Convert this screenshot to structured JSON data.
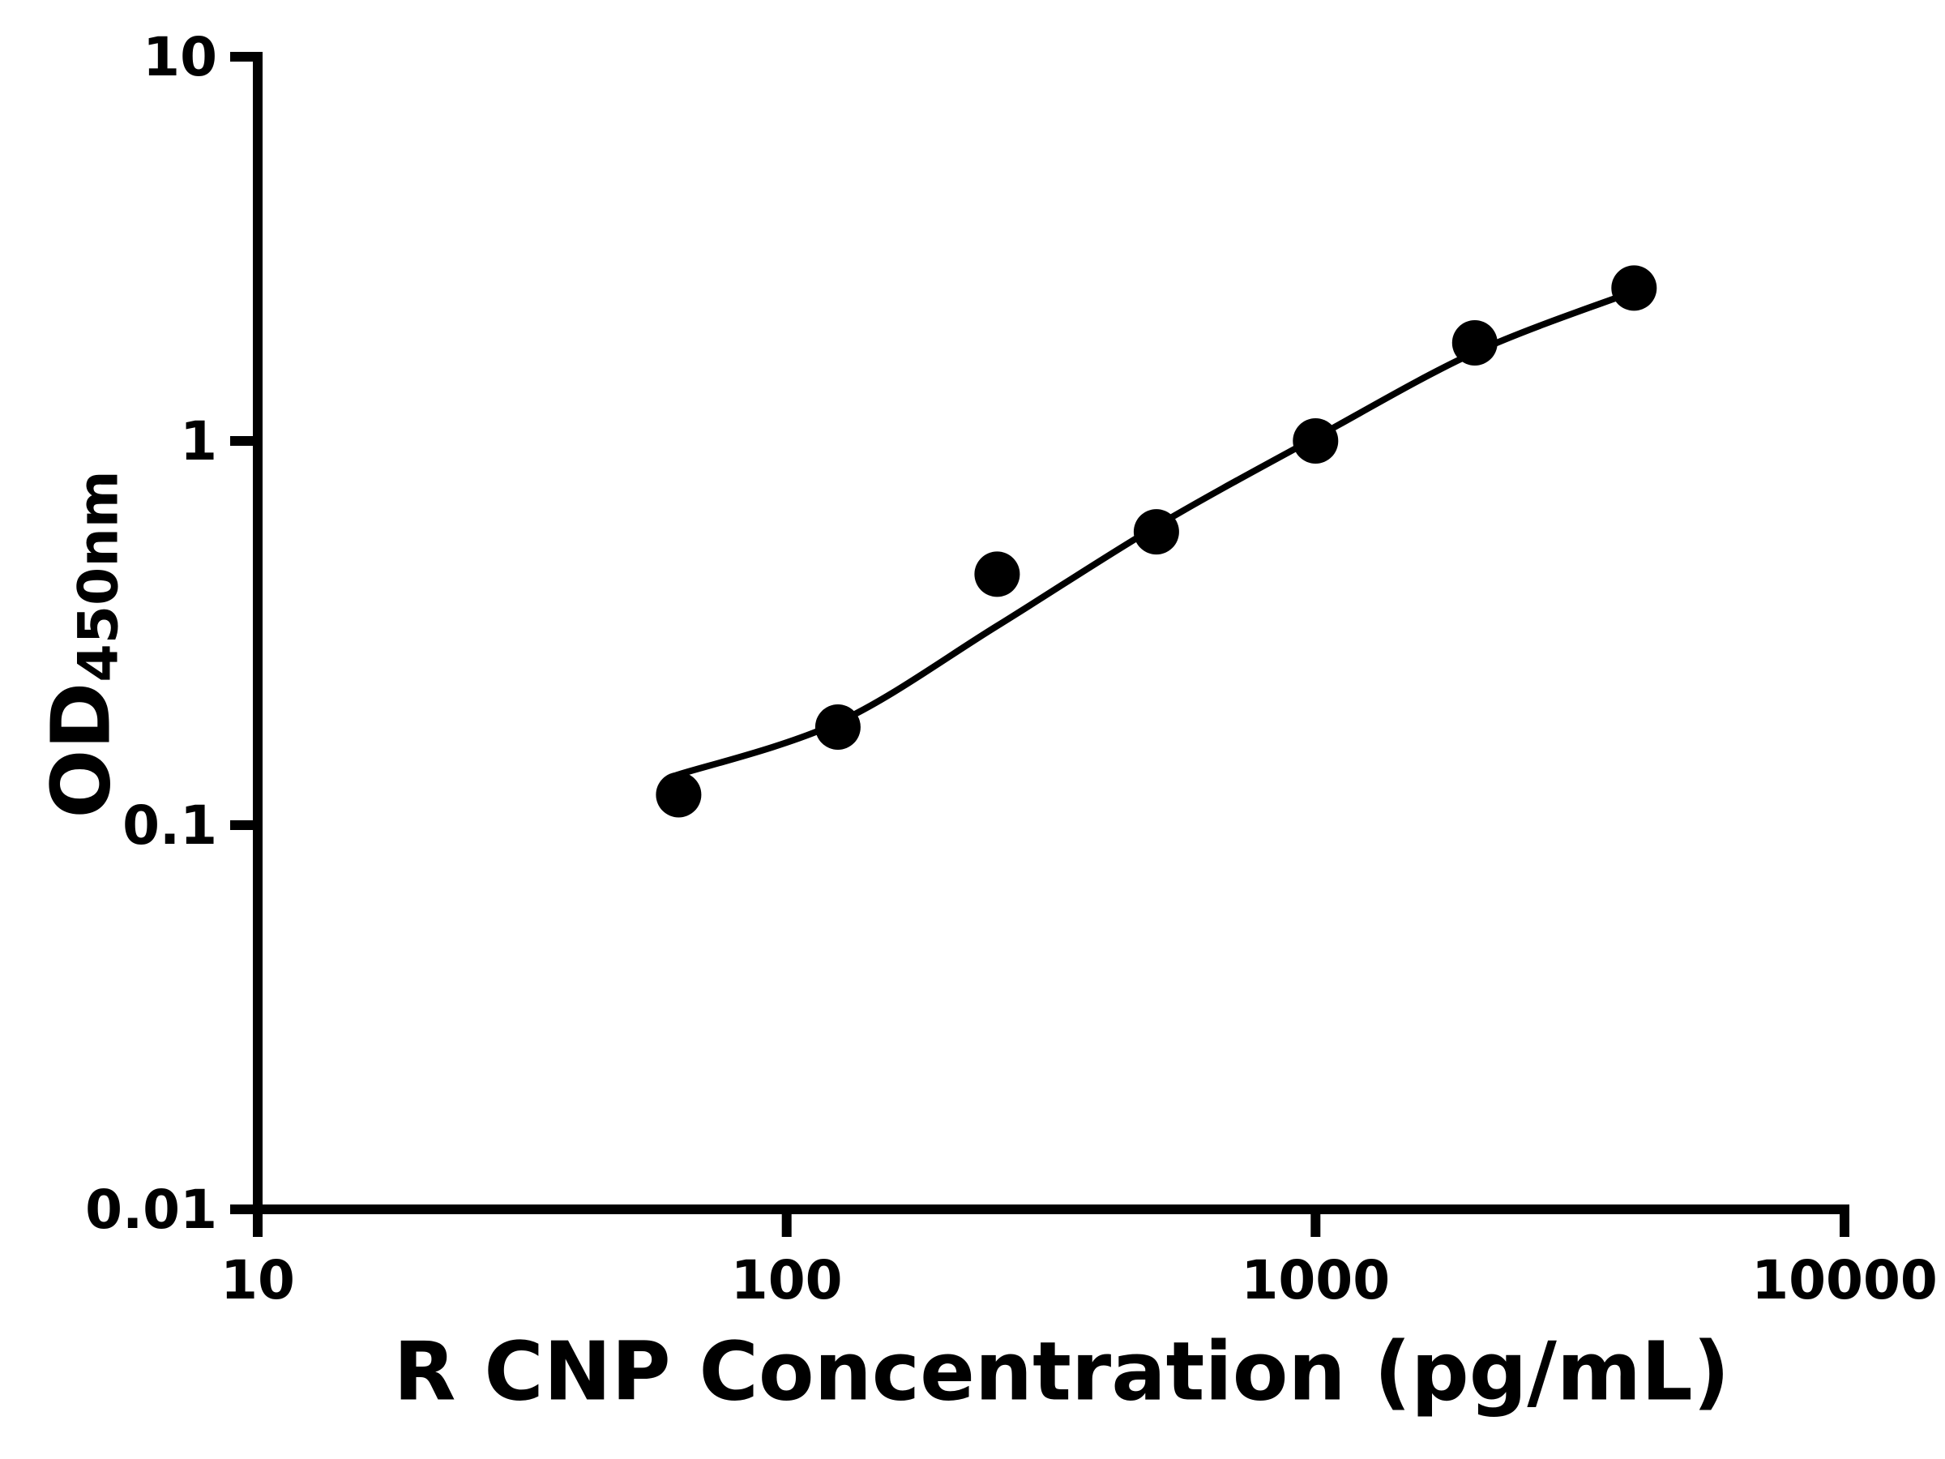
{
  "chart_data": {
    "type": "scatter",
    "title": "",
    "xlabel": "R CNP Concentration (pg/mL)",
    "ylabel_main": "OD",
    "ylabel_sub": "450nm",
    "x_scale": "log",
    "y_scale": "log",
    "x_range": [
      10,
      10000
    ],
    "y_range": [
      0.01,
      10
    ],
    "grid": false,
    "legend": false,
    "background_color": "#ffffff",
    "axis_color": "#000000",
    "marker_color": "#000000",
    "line_color": "#000000",
    "x_ticks": [
      {
        "value": 10,
        "label": "10"
      },
      {
        "value": 100,
        "label": "100"
      },
      {
        "value": 1000,
        "label": "1000"
      },
      {
        "value": 10000,
        "label": "10000"
      }
    ],
    "y_ticks": [
      {
        "value": 0.01,
        "label": "0.01"
      },
      {
        "value": 0.1,
        "label": "0.1"
      },
      {
        "value": 1,
        "label": "1"
      },
      {
        "value": 10,
        "label": "10"
      }
    ],
    "series": [
      {
        "name": "standard-curve-points",
        "kind": "scatter",
        "x": [
          62.5,
          125,
          250,
          500,
          1000,
          2000,
          4000
        ],
        "y": [
          0.12,
          0.18,
          0.45,
          0.58,
          1.0,
          1.8,
          2.5
        ]
      },
      {
        "name": "four-parameter-fit-curve",
        "kind": "line",
        "x": [
          62,
          125,
          250,
          500,
          1000,
          2000,
          4000
        ],
        "y": [
          0.135,
          0.185,
          0.33,
          0.6,
          1.02,
          1.7,
          2.45
        ]
      }
    ]
  }
}
